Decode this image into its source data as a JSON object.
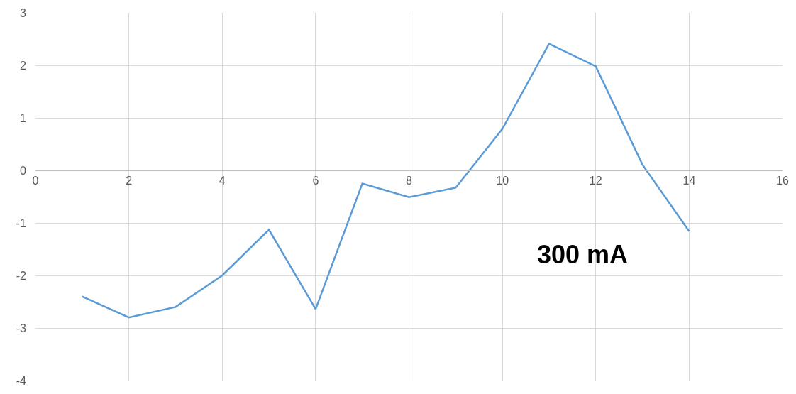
{
  "chart_data": {
    "type": "line",
    "x": [
      1,
      2,
      3,
      4,
      5,
      6,
      7,
      8,
      9,
      10,
      11,
      12,
      13,
      14
    ],
    "series": [
      {
        "color": "#5b9bd5",
        "values": [
          -2.4,
          -2.8,
          -2.6,
          -2.0,
          -1.13,
          -2.64,
          -0.25,
          -0.51,
          -0.33,
          0.79,
          2.41,
          1.98,
          0.11,
          -1.16
        ]
      }
    ],
    "xlim": [
      0,
      16
    ],
    "xticks": [
      0,
      2,
      4,
      6,
      8,
      10,
      12,
      14,
      16
    ],
    "ylim": [
      -4,
      3
    ],
    "yticks": [
      -4,
      -3,
      -2,
      -1,
      0,
      1,
      2,
      3
    ],
    "grid": true,
    "legend": false,
    "marker": "none",
    "line_style": "solid",
    "annotations": [
      "300 mA"
    ]
  }
}
